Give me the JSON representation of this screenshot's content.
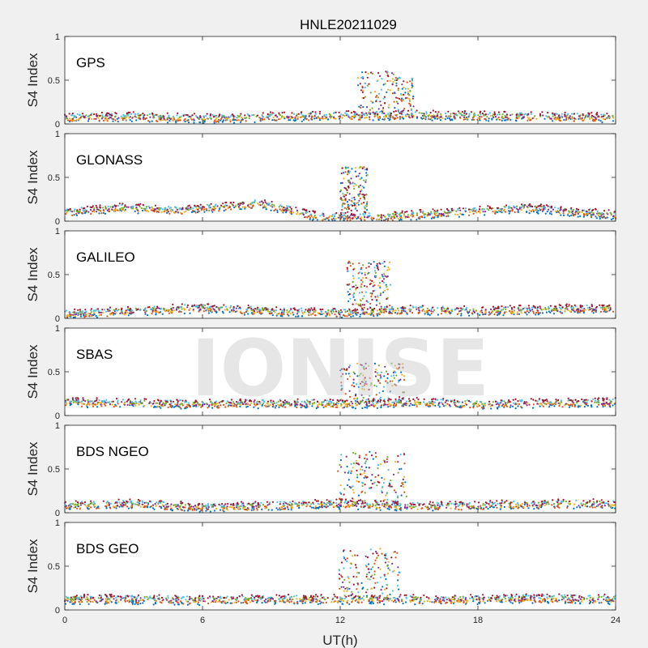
{
  "colors": {
    "figure_bg": "#f0f0f0",
    "axes_bg": "#ffffff",
    "series": [
      "#0072bd",
      "#d95319",
      "#edb120",
      "#7e2f8e",
      "#77ac30",
      "#4dbeee",
      "#a2142f"
    ]
  },
  "chart_data": {
    "type": "scatter",
    "title": "HNLE20211029",
    "xlabel": "UT(h)",
    "ylabel": "S4 Index",
    "xlim": [
      0,
      24
    ],
    "ylim": [
      0,
      1
    ],
    "xticks": [
      "0",
      "6",
      "12",
      "18",
      "24"
    ],
    "yticks": [
      "0",
      "0.5",
      "1"
    ],
    "watermark": "IONISE",
    "panels": [
      {
        "label": "GPS",
        "background": [
          [
            0,
            0.07
          ],
          [
            3,
            0.08
          ],
          [
            6,
            0.06
          ],
          [
            9,
            0.08
          ],
          [
            12,
            0.09
          ],
          [
            15,
            0.1
          ],
          [
            18,
            0.09
          ],
          [
            21,
            0.08
          ],
          [
            24,
            0.07
          ]
        ],
        "burst": [
          12.7,
          15.2,
          0.6
        ]
      },
      {
        "label": "GLONASS",
        "background": [
          [
            0,
            0.1
          ],
          [
            2.5,
            0.15
          ],
          [
            5,
            0.12
          ],
          [
            8.5,
            0.2
          ],
          [
            11,
            0.05
          ],
          [
            14,
            0.05
          ],
          [
            17,
            0.1
          ],
          [
            20,
            0.15
          ],
          [
            24,
            0.07
          ]
        ],
        "burst": [
          12.0,
          13.2,
          0.62
        ]
      },
      {
        "label": "GALILEO",
        "background": [
          [
            0,
            0.05
          ],
          [
            3,
            0.08
          ],
          [
            6,
            0.12
          ],
          [
            9,
            0.08
          ],
          [
            12,
            0.06
          ],
          [
            15,
            0.1
          ],
          [
            18,
            0.08
          ],
          [
            21,
            0.1
          ],
          [
            24,
            0.12
          ]
        ],
        "burst": [
          12.3,
          14.2,
          0.65
        ]
      },
      {
        "label": "SBAS",
        "background": [
          [
            0,
            0.15
          ],
          [
            3,
            0.14
          ],
          [
            6,
            0.13
          ],
          [
            9,
            0.14
          ],
          [
            12,
            0.13
          ],
          [
            15,
            0.15
          ],
          [
            18,
            0.13
          ],
          [
            21,
            0.14
          ],
          [
            24,
            0.15
          ]
        ],
        "burst": [
          12.0,
          14.8,
          0.6
        ]
      },
      {
        "label": "BDS NGEO",
        "background": [
          [
            0,
            0.08
          ],
          [
            3,
            0.1
          ],
          [
            6,
            0.06
          ],
          [
            9,
            0.08
          ],
          [
            12,
            0.1
          ],
          [
            15,
            0.07
          ],
          [
            18,
            0.08
          ],
          [
            21,
            0.1
          ],
          [
            24,
            0.1
          ]
        ],
        "burst": [
          11.9,
          14.9,
          0.7
        ]
      },
      {
        "label": "BDS GEO",
        "background": [
          [
            0,
            0.12
          ],
          [
            3,
            0.12
          ],
          [
            6,
            0.11
          ],
          [
            9,
            0.12
          ],
          [
            12,
            0.12
          ],
          [
            15,
            0.12
          ],
          [
            18,
            0.12
          ],
          [
            21,
            0.13
          ],
          [
            24,
            0.12
          ]
        ],
        "burst": [
          11.9,
          14.6,
          0.7
        ]
      }
    ]
  }
}
